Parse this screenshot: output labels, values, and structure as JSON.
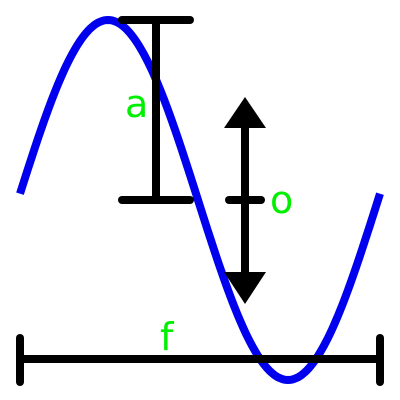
{
  "labels": {
    "amplitude": "a",
    "offset": "o",
    "frequency": "f"
  },
  "colors": {
    "wave": "#0000ee",
    "markers": "#000000",
    "labels": "#00ee00",
    "background": "#ffffff"
  }
}
